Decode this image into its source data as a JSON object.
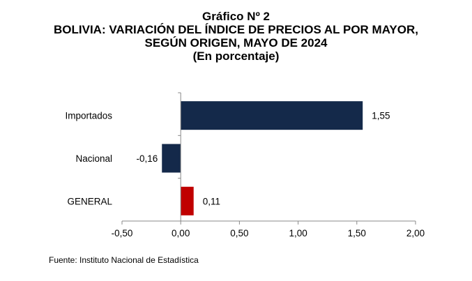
{
  "titles": {
    "line1": "Gráfico Nº 2",
    "line2": "BOLIVIA: VARIACIÓN DEL ÍNDICE DE PRECIOS AL POR MAYOR,",
    "line3": "SEGÚN ORIGEN, MAYO DE 2024",
    "line4": "(En porcentaje)"
  },
  "source": "Fuente: Instituto Nacional de Estadística",
  "chart_data": {
    "type": "bar",
    "orientation": "horizontal",
    "title": "BOLIVIA: VARIACIÓN DEL ÍNDICE DE PRECIOS AL POR MAYOR, SEGÚN ORIGEN, MAYO DE 2024",
    "subtitle": "(En porcentaje)",
    "categories": [
      "Importados",
      "Nacional",
      "GENERAL"
    ],
    "values": [
      1.55,
      -0.16,
      0.11
    ],
    "value_labels": [
      "1,55",
      "-0,16",
      "0,11"
    ],
    "colors": [
      "#14294a",
      "#14294a",
      "#c00000"
    ],
    "xlim": [
      -0.5,
      2.0
    ],
    "xticks": [
      -0.5,
      0,
      0.5,
      1.0,
      1.5,
      2.0
    ],
    "xtick_labels": [
      "-0,50",
      "0,00",
      "0,50",
      "1,00",
      "1,50",
      "2,00"
    ],
    "grid": false,
    "legend": "none"
  }
}
